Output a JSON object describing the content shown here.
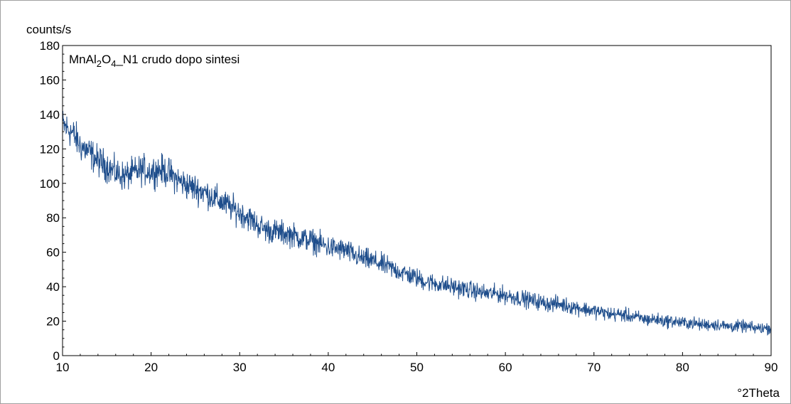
{
  "chart_data": {
    "type": "line",
    "title": "",
    "annotation": {
      "parts": [
        {
          "text": "MnAl",
          "sub": false
        },
        {
          "text": "2",
          "sub": true
        },
        {
          "text": "O",
          "sub": false
        },
        {
          "text": "4",
          "sub": true
        },
        {
          "text": "_N1 crudo dopo sintesi",
          "sub": false
        }
      ],
      "placement": "top-left inside plot"
    },
    "xlabel": "°2Theta",
    "ylabel": "counts/s",
    "xlim": [
      10,
      90
    ],
    "ylim": [
      0,
      180
    ],
    "x_ticks": [
      10,
      20,
      30,
      40,
      50,
      60,
      70,
      80,
      90
    ],
    "y_ticks": [
      0,
      20,
      40,
      60,
      80,
      100,
      120,
      140,
      160,
      180
    ],
    "grid": false,
    "series_color": "#1f4e8c",
    "series": [
      {
        "name": "",
        "x": [
          10,
          11,
          12,
          13,
          14,
          15,
          16,
          17,
          18,
          19,
          20,
          21,
          22,
          23,
          24,
          25,
          26,
          27,
          28,
          29,
          30,
          31,
          32,
          33,
          34,
          35,
          36,
          37,
          38,
          39,
          40,
          41,
          42,
          43,
          44,
          45,
          46,
          47,
          48,
          49,
          50,
          51,
          52,
          53,
          54,
          55,
          56,
          57,
          58,
          59,
          60,
          61,
          62,
          63,
          64,
          65,
          66,
          67,
          68,
          69,
          70,
          71,
          72,
          73,
          74,
          75,
          76,
          77,
          78,
          79,
          80,
          81,
          82,
          83,
          84,
          85,
          86,
          87,
          88,
          89,
          90
        ],
        "values": [
          134,
          130,
          122,
          118,
          113,
          110,
          106,
          104,
          106,
          108,
          107,
          108,
          106,
          102,
          99,
          97,
          95,
          92,
          89,
          86,
          83,
          80,
          76,
          73,
          72,
          71,
          70,
          68,
          67,
          65,
          63,
          62,
          61,
          58,
          56,
          55,
          53,
          51,
          49,
          47,
          45,
          43,
          42,
          41,
          40,
          39,
          38,
          37,
          36,
          36,
          35,
          34,
          33,
          32,
          31,
          30,
          30,
          29,
          28,
          27,
          26,
          25,
          24,
          24,
          23,
          22,
          21,
          21,
          20,
          20,
          19,
          19,
          18,
          18,
          18,
          17,
          17,
          17,
          16,
          16,
          16
        ]
      }
    ]
  }
}
